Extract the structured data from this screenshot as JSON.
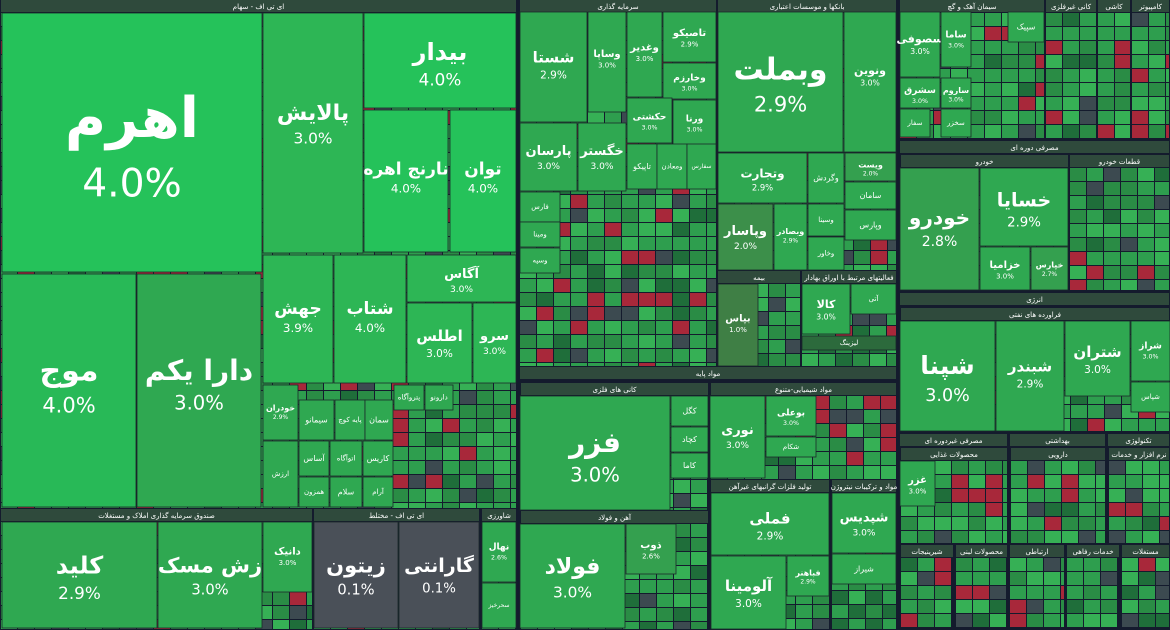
{
  "groups": [
    {
      "title": "ای تی اف - سهام",
      "tiles": [
        {
          "name": "اهرم",
          "change": "4.0%",
          "color": "#25c25a"
        },
        {
          "name": "پالایش",
          "change": "3.0%",
          "color": "#2db655"
        },
        {
          "name": "بیدار",
          "change": "4.0%",
          "color": "#25c25a"
        },
        {
          "name": "نارنج اهره",
          "change": "4.0%",
          "color": "#25c25a"
        },
        {
          "name": "توان",
          "change": "4.0%",
          "color": "#25c25a"
        },
        {
          "name": "موج",
          "change": "4.0%",
          "color": "#28b957"
        },
        {
          "name": "دارا یکم",
          "change": "3.0%",
          "color": "#2fa851"
        },
        {
          "name": "جهش",
          "change": "3.9%",
          "color": "#2db655"
        },
        {
          "name": "شتاب",
          "change": "4.0%",
          "color": "#2db655"
        },
        {
          "name": "آگاس",
          "change": "3.0%",
          "color": "#2db655"
        },
        {
          "name": "اطلس",
          "change": "3.0%",
          "color": "#2db655"
        },
        {
          "name": "سرو",
          "change": "3.0%",
          "color": "#2db655"
        },
        {
          "name": "خودران",
          "change": "2.9%",
          "color": "#2fa851"
        },
        {
          "name": "سیمانو",
          "color": "#2fa851"
        },
        {
          "name": "پایه کوچ",
          "color": "#2fa851"
        },
        {
          "name": "سمان",
          "color": "#2fa851"
        },
        {
          "name": "پتروآگاه",
          "color": "#2fa851"
        },
        {
          "name": "دارونو",
          "color": "#2fa851"
        },
        {
          "name": "آساس",
          "color": "#2fa851"
        },
        {
          "name": "اتوآگاه",
          "color": "#2fa851"
        },
        {
          "name": "کاریس",
          "color": "#2fa851"
        },
        {
          "name": "همزون",
          "color": "#2fa851"
        },
        {
          "name": "سلام",
          "color": "#2fa851"
        },
        {
          "name": "آرام",
          "color": "#2fa851"
        },
        {
          "name": "ارزش",
          "color": "#2fa851"
        }
      ]
    },
    {
      "title": "صندوق سرمایه گذاری املاک و مستغلات",
      "tiles": [
        {
          "name": "کلید",
          "change": "2.9%",
          "color": "#2fa851"
        },
        {
          "name": "زش مسک",
          "change": "3.0%",
          "color": "#2fa851"
        },
        {
          "name": "دانیک",
          "change": "3.0%",
          "color": "#2fa851"
        }
      ]
    },
    {
      "title": "ای تی اف - مختلط",
      "tiles": [
        {
          "name": "زیتون",
          "change": "0.1%",
          "color": "#4a5058"
        },
        {
          "name": "گارانتی",
          "change": "0.1%",
          "color": "#4a5058"
        }
      ]
    },
    {
      "title": "شاورزی",
      "tiles": [
        {
          "name": "نهال",
          "change": "2.6%",
          "color": "#2fa851"
        },
        {
          "name": "سحرخیز",
          "color": "#2fa851"
        }
      ]
    },
    {
      "title": "سرمایه گذاری",
      "tiles": [
        {
          "name": "شستا",
          "change": "2.9%",
          "color": "#2fa851"
        },
        {
          "name": "وساپا",
          "change": "3.0%",
          "color": "#2fa851"
        },
        {
          "name": "وغدیر",
          "change": "3.0%",
          "color": "#2fa851"
        },
        {
          "name": "تاصیکو",
          "change": "2.9%",
          "color": "#2fa851"
        },
        {
          "name": "وخارزم",
          "change": "3.0%",
          "color": "#2fa851"
        },
        {
          "name": "حکشتی",
          "change": "3.0%",
          "color": "#2fa851"
        },
        {
          "name": "ورنا",
          "change": "3.0%",
          "color": "#2fa851"
        },
        {
          "name": "پارسان",
          "change": "3.0%",
          "color": "#2fa851"
        },
        {
          "name": "خگستر",
          "change": "3.0%",
          "color": "#2fa851"
        },
        {
          "name": "تاپیکو",
          "color": "#2fa851"
        },
        {
          "name": "ومعادن",
          "color": "#2fa851"
        },
        {
          "name": "سفارس",
          "color": "#2fa851"
        },
        {
          "name": "فارس",
          "color": "#2fa851"
        },
        {
          "name": "ومینا",
          "color": "#2fa851"
        },
        {
          "name": "وسپه",
          "color": "#2fa851"
        }
      ]
    },
    {
      "title": "بانکها و موسسات اعتباری",
      "tiles": [
        {
          "name": "وبملت",
          "change": "2.9%",
          "color": "#2fa851"
        },
        {
          "name": "ونوین",
          "change": "3.0%",
          "color": "#2fa851"
        },
        {
          "name": "وتجارت",
          "change": "2.9%",
          "color": "#2fa851"
        },
        {
          "name": "ویست",
          "change": "2.0%",
          "color": "#34a04f"
        },
        {
          "name": "وگردش",
          "color": "#2fa851"
        },
        {
          "name": "سامان",
          "color": "#2fa851"
        },
        {
          "name": "وپاسار",
          "change": "2.0%",
          "color": "#3c8f4a"
        },
        {
          "name": "وبصادر",
          "change": "2.9%",
          "color": "#2fa851"
        },
        {
          "name": "وسینا",
          "color": "#2fa851"
        },
        {
          "name": "وخاور",
          "color": "#2fa851"
        },
        {
          "name": "وپارس",
          "color": "#2fa851"
        }
      ]
    },
    {
      "title": "بیمه",
      "tiles": [
        {
          "name": "بپاس",
          "change": "1.0%",
          "color": "#3f7f45"
        }
      ]
    },
    {
      "title": "فعالیتهای مرتبط با اوراق بهادار",
      "tiles": [
        {
          "name": "کالا",
          "change": "3.0%",
          "color": "#2fa851"
        },
        {
          "name": "آتی",
          "color": "#2fa851"
        },
        {
          "name": "لیزینگ",
          "color": "#2c6a3c"
        }
      ]
    },
    {
      "title": "سیمان آهک و گچ",
      "tiles": [
        {
          "name": "سصوفی",
          "change": "3.0%",
          "color": "#2fa851"
        },
        {
          "name": "ساما",
          "change": "3.0%",
          "color": "#2fa851"
        },
        {
          "name": "سپیک",
          "color": "#2fa851"
        },
        {
          "name": "سشرق",
          "change": "3.0%",
          "color": "#2fa851"
        },
        {
          "name": "ساروم",
          "change": "3.0%",
          "color": "#2fa851"
        },
        {
          "name": "سفار",
          "color": "#2fa851"
        },
        {
          "name": "سخزر",
          "color": "#2fa851"
        }
      ]
    },
    {
      "title": "کانی غیرفلزی",
      "tiles": []
    },
    {
      "title": "کاشی",
      "tiles": []
    },
    {
      "title": "کامپیوتر",
      "tiles": []
    },
    {
      "title": "مصرفی دوره ای",
      "tiles": []
    },
    {
      "title": "خودرو",
      "tiles": [
        {
          "name": "خسایا",
          "change": "2.9%",
          "color": "#2fa851"
        },
        {
          "name": "خودرو",
          "change": "2.8%",
          "color": "#34a04f"
        },
        {
          "name": "خزامیا",
          "change": "3.0%",
          "color": "#2fa851"
        },
        {
          "name": "خپارس",
          "change": "2.7%",
          "color": "#34a04f"
        }
      ]
    },
    {
      "title": "قطعات خودرو",
      "tiles": []
    },
    {
      "title": "انرژی",
      "tiles": []
    },
    {
      "title": "فراورده های نفتی",
      "tiles": [
        {
          "name": "شپنا",
          "change": "3.0%",
          "color": "#2fa851"
        },
        {
          "name": "شبندر",
          "change": "2.9%",
          "color": "#2fa851"
        },
        {
          "name": "شتران",
          "change": "3.0%",
          "color": "#2fa851"
        },
        {
          "name": "شراز",
          "change": "3.0%",
          "color": "#2fa851"
        },
        {
          "name": "شپاس",
          "color": "#2fa851"
        }
      ]
    },
    {
      "title": "مواد پایه",
      "tiles": []
    },
    {
      "title": "کانی های فلزی",
      "tiles": [
        {
          "name": "فزر",
          "change": "3.0%",
          "color": "#2fa851"
        },
        {
          "name": "کگل",
          "color": "#2fa851"
        },
        {
          "name": "کچاد",
          "color": "#2fa851"
        },
        {
          "name": "کاما",
          "color": "#2fa851"
        }
      ]
    },
    {
      "title": "آهن و فولاد",
      "tiles": [
        {
          "name": "فولاد",
          "change": "3.0%",
          "color": "#2fa851"
        },
        {
          "name": "ذوب",
          "change": "2.6%",
          "color": "#34a04f"
        }
      ]
    },
    {
      "title": "مواد شیمیایی-متنوع",
      "tiles": [
        {
          "name": "نوری",
          "change": "3.0%",
          "color": "#2fa851"
        },
        {
          "name": "بوعلی",
          "change": "3.0%",
          "color": "#2fa851"
        },
        {
          "name": "شکام",
          "color": "#2fa851"
        }
      ]
    },
    {
      "title": "تولید فلزات گرانبهای غیرآهن",
      "tiles": [
        {
          "name": "فملی",
          "change": "2.9%",
          "color": "#2fa851"
        },
        {
          "name": "آلومینا",
          "change": "3.0%",
          "color": "#2fa851"
        },
        {
          "name": "فباهنر",
          "change": "2.9%",
          "color": "#2fa851"
        }
      ]
    },
    {
      "title": "مواد و ترکیبات نیتروژن",
      "tiles": [
        {
          "name": "شپدیس",
          "change": "3.0%",
          "color": "#2fa851"
        },
        {
          "name": "شیراز",
          "color": "#2fa851"
        }
      ]
    },
    {
      "title": "مصرفی غیردوره ای",
      "tiles": []
    },
    {
      "title": "محصولات غذایی",
      "tiles": [
        {
          "name": "غزر",
          "change": "3.0%",
          "color": "#2fa851"
        }
      ]
    },
    {
      "title": "بهداشتی",
      "tiles": []
    },
    {
      "title": "دارویی",
      "tiles": []
    },
    {
      "title": "تکنولوژی",
      "tiles": []
    },
    {
      "title": "نرم افزار و خدمات",
      "tiles": []
    },
    {
      "title": "شیرینیجات",
      "tiles": []
    },
    {
      "title": "محصولات لبنی",
      "tiles": []
    },
    {
      "title": "ارتباطی",
      "tiles": []
    },
    {
      "title": "خدمات رفاهی",
      "tiles": []
    },
    {
      "title": "مستغلات",
      "tiles": []
    }
  ]
}
